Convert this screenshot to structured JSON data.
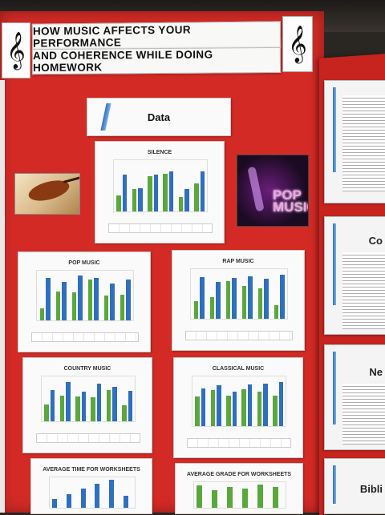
{
  "header": {
    "title_line_1": "HOW MUSIC AFFECTS YOUR PERFORMANCE",
    "title_line_2": "AND COHERENCE WHILE DOING HOMEWORK",
    "clef_symbol": "𝄞"
  },
  "data_section": {
    "label": "Data"
  },
  "photos": {
    "pop_text": "POP MUSIC"
  },
  "charts": [
    {
      "id": "silence",
      "title": "SILENCE",
      "blue": [
        0.72,
        0.46,
        0.72,
        0.78,
        0.43,
        0.78
      ],
      "green": [
        0.32,
        0.44,
        0.68,
        0.74,
        0.28,
        0.54
      ]
    },
    {
      "id": "pop",
      "title": "POP MUSIC",
      "blue": [
        0.86,
        0.78,
        0.9,
        0.86,
        0.74,
        0.82
      ],
      "green": [
        0.24,
        0.58,
        0.56,
        0.82,
        0.5,
        0.52
      ]
    },
    {
      "id": "rap",
      "title": "RAP MUSIC",
      "blue": [
        0.84,
        0.74,
        0.82,
        0.86,
        0.8,
        0.88
      ],
      "green": [
        0.36,
        0.44,
        0.76,
        0.66,
        0.62,
        0.28
      ]
    },
    {
      "id": "country",
      "title": "COUNTRY MUSIC",
      "blue": [
        0.7,
        0.88,
        0.66,
        0.84,
        0.76,
        0.68
      ],
      "green": [
        0.38,
        0.58,
        0.56,
        0.54,
        0.7,
        0.36
      ]
    },
    {
      "id": "classical",
      "title": "CLASSICAL MUSIC",
      "blue": [
        0.76,
        0.82,
        0.7,
        0.84,
        0.86,
        0.88
      ],
      "green": [
        0.6,
        0.72,
        0.62,
        0.74,
        0.7,
        0.62
      ]
    },
    {
      "id": "avg-time",
      "title": "AVERAGE TIME FOR WORKSHEETS",
      "blue": [
        0.3,
        0.46,
        0.62,
        0.78,
        0.92,
        0.4
      ],
      "green": []
    },
    {
      "id": "avg-grade",
      "title": "AVERAGE GRADE FOR WORKSHEETS",
      "blue": [],
      "green": [
        0.88,
        0.7,
        0.8,
        0.74,
        0.9,
        0.82
      ]
    }
  ],
  "side_panel": {
    "headings": [
      "Co",
      "Ne",
      "Bibli"
    ]
  },
  "colors": {
    "board_red": "#d42a25",
    "bar_blue": "#2e6fc0",
    "bar_green": "#5aa83c"
  }
}
